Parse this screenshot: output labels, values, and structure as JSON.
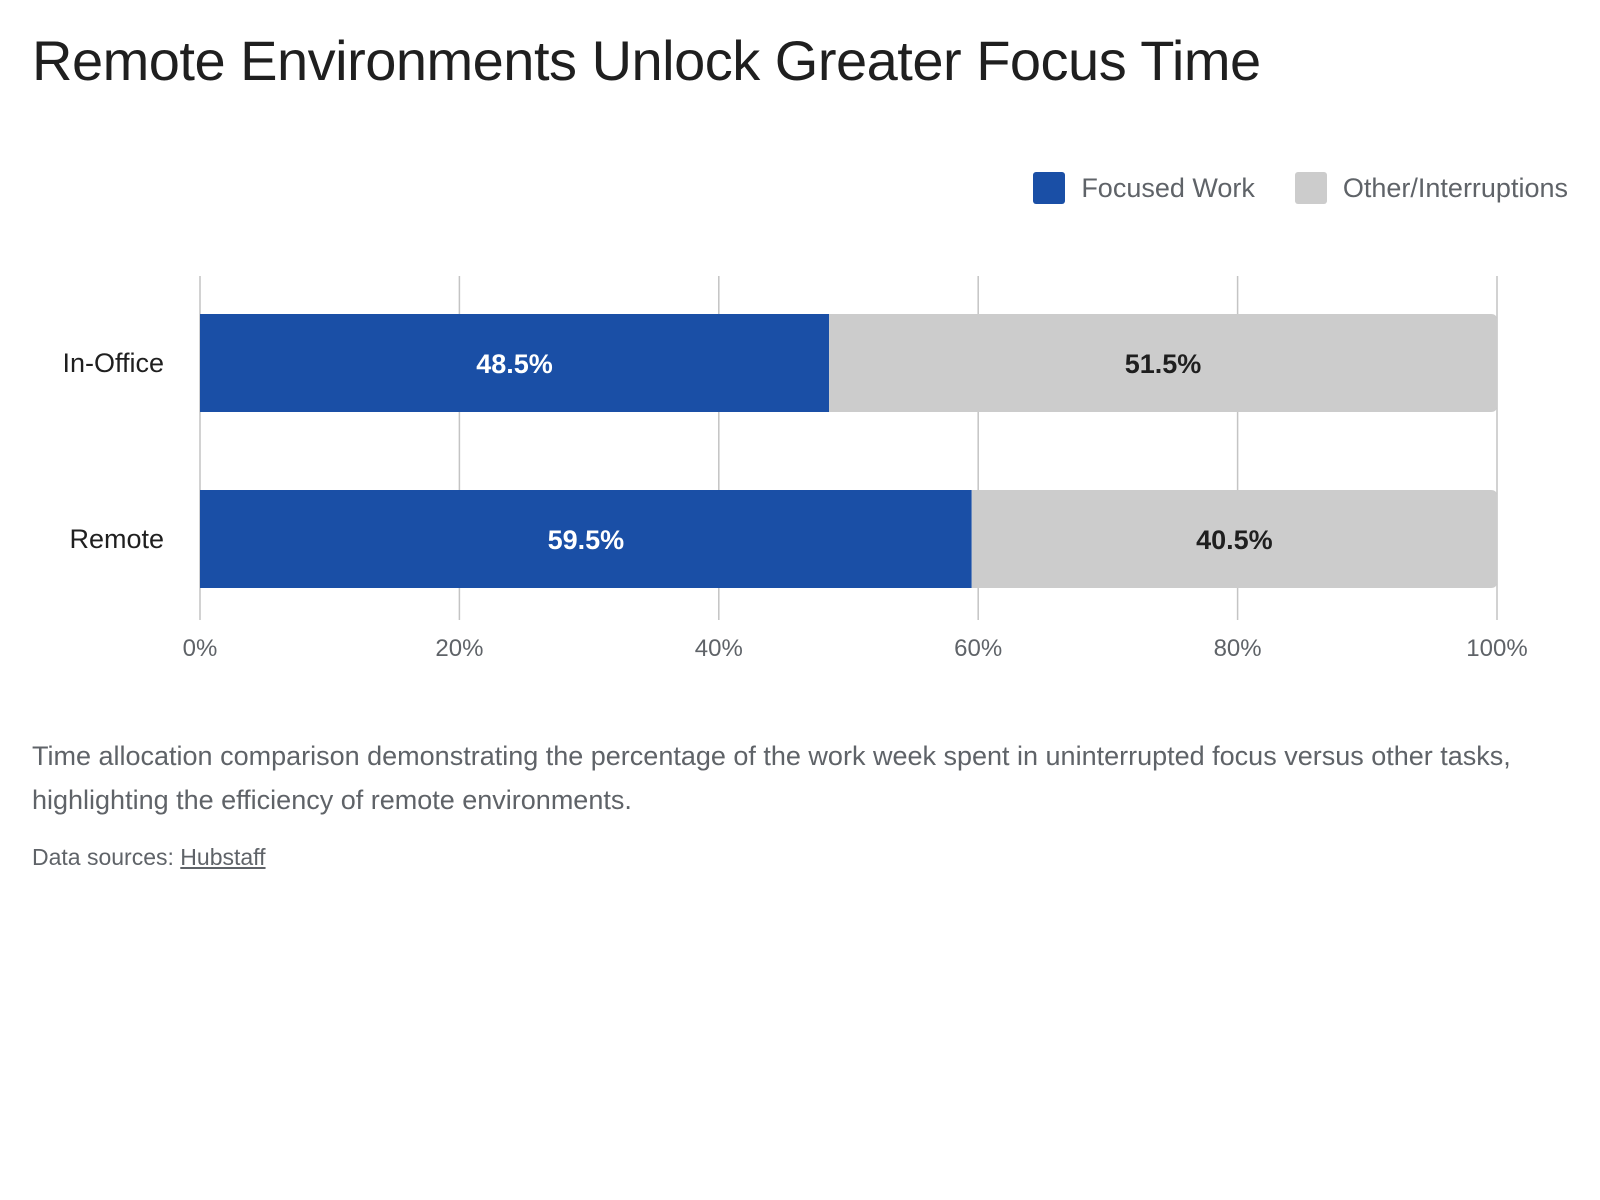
{
  "title": "Remote Environments Unlock Greater Focus Time",
  "caption": "Time allocation comparison demonstrating the percentage of the work week spent in uninterrupted focus versus other tasks, highlighting the efficiency of remote environments.",
  "sources": {
    "label": "Data sources:",
    "link_text": "Hubstaff"
  },
  "colors": {
    "focused": "#1a4fa6",
    "other": "#cccccc",
    "grid": "#c4c4c4",
    "focused_label": "#ffffff",
    "other_label": "#1f1f1f"
  },
  "chart_data": {
    "type": "bar",
    "orientation": "horizontal",
    "stacked": true,
    "title": "Remote Environments Unlock Greater Focus Time",
    "categories": [
      "In-Office",
      "Remote"
    ],
    "series": [
      {
        "name": "Focused Work",
        "values": [
          48.5,
          59.5
        ],
        "labels": [
          "48.5%",
          "59.5%"
        ]
      },
      {
        "name": "Other/Interruptions",
        "values": [
          51.5,
          40.5
        ],
        "labels": [
          "51.5%",
          "40.5%"
        ]
      }
    ],
    "xlim": [
      0,
      100
    ],
    "xticks": [
      0,
      20,
      40,
      60,
      80,
      100
    ],
    "xtick_labels": [
      "0%",
      "20%",
      "40%",
      "60%",
      "80%",
      "100%"
    ],
    "grid": true,
    "legend_position": "top-right"
  }
}
